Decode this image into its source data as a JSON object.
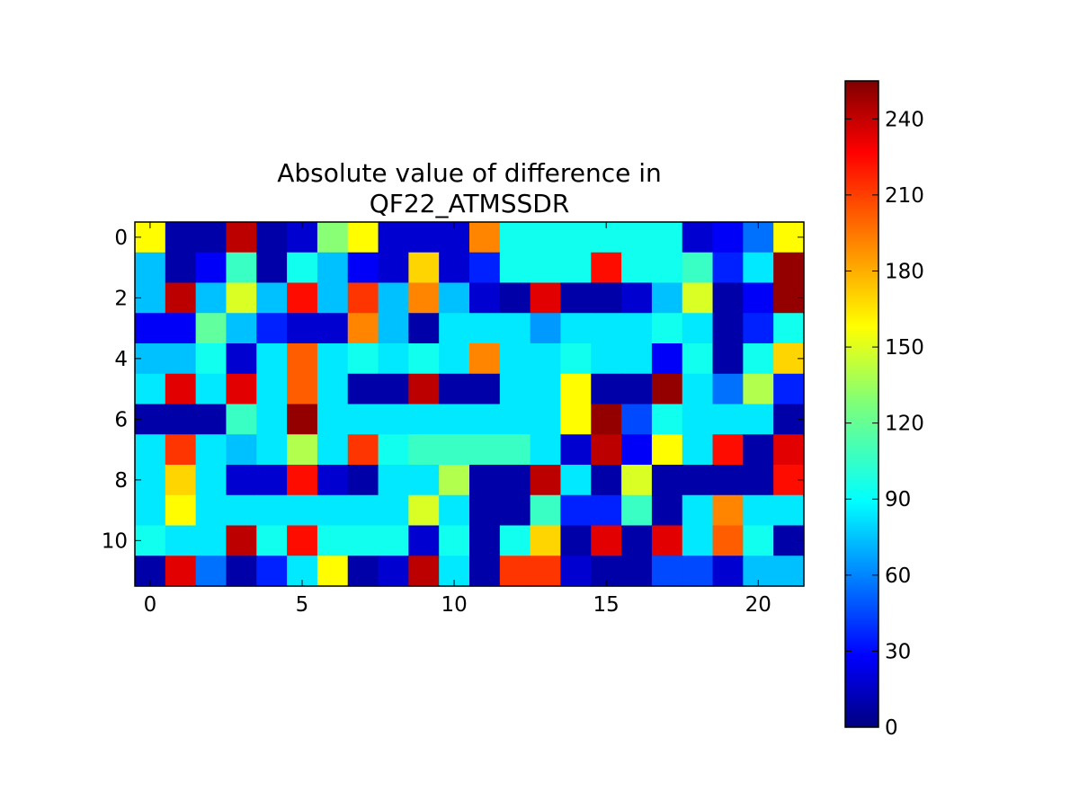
{
  "chart_data": {
    "type": "heatmap",
    "title_lines": [
      "Absolute value of difference in",
      "QF22_ATMSSDR"
    ],
    "colormap": "jet",
    "interpolation": "bilinear",
    "x_ticks": [
      0,
      5,
      10,
      15,
      20
    ],
    "y_ticks": [
      0,
      2,
      4,
      6,
      8,
      10
    ],
    "xlim": [
      -0.5,
      21.5
    ],
    "ylim": [
      11.5,
      -0.5
    ],
    "colorbar": {
      "range": [
        0,
        255
      ],
      "ticks": [
        0,
        30,
        60,
        90,
        120,
        150,
        180,
        210,
        240
      ],
      "position": "right"
    },
    "rows": 12,
    "cols": 22,
    "values": [
      [
        160,
        10,
        10,
        240,
        10,
        20,
        130,
        160,
        20,
        20,
        20,
        190,
        100,
        100,
        100,
        100,
        100,
        100,
        20,
        30,
        60,
        160
      ],
      [
        80,
        10,
        30,
        110,
        10,
        100,
        80,
        30,
        20,
        170,
        20,
        40,
        100,
        100,
        100,
        220,
        100,
        100,
        110,
        40,
        90,
        250
      ],
      [
        80,
        240,
        80,
        150,
        80,
        220,
        80,
        210,
        80,
        190,
        80,
        20,
        10,
        230,
        10,
        10,
        20,
        80,
        150,
        10,
        30,
        250
      ],
      [
        30,
        30,
        120,
        80,
        40,
        20,
        20,
        190,
        80,
        10,
        90,
        90,
        90,
        70,
        90,
        90,
        90,
        100,
        90,
        10,
        40,
        100
      ],
      [
        80,
        80,
        100,
        20,
        90,
        200,
        90,
        100,
        90,
        100,
        90,
        190,
        90,
        90,
        100,
        90,
        90,
        30,
        100,
        10,
        100,
        170
      ],
      [
        90,
        230,
        90,
        230,
        90,
        200,
        90,
        10,
        10,
        240,
        10,
        10,
        90,
        90,
        160,
        10,
        10,
        250,
        90,
        60,
        140,
        40
      ],
      [
        10,
        10,
        10,
        110,
        90,
        250,
        90,
        90,
        90,
        90,
        90,
        90,
        90,
        90,
        160,
        250,
        50,
        100,
        90,
        90,
        90,
        10
      ],
      [
        90,
        210,
        90,
        80,
        90,
        140,
        90,
        210,
        100,
        110,
        110,
        110,
        110,
        90,
        20,
        240,
        30,
        160,
        90,
        220,
        10,
        230
      ],
      [
        90,
        170,
        90,
        20,
        20,
        220,
        20,
        10,
        90,
        90,
        140,
        10,
        10,
        240,
        90,
        10,
        150,
        10,
        10,
        10,
        10,
        220
      ],
      [
        90,
        160,
        90,
        90,
        90,
        90,
        90,
        90,
        90,
        150,
        90,
        10,
        10,
        110,
        40,
        40,
        110,
        10,
        90,
        190,
        90,
        90
      ],
      [
        100,
        90,
        90,
        240,
        100,
        220,
        100,
        100,
        100,
        20,
        100,
        10,
        100,
        170,
        10,
        230,
        10,
        230,
        90,
        200,
        100,
        10
      ],
      [
        10,
        230,
        60,
        10,
        40,
        90,
        160,
        10,
        20,
        240,
        90,
        10,
        210,
        210,
        20,
        10,
        10,
        50,
        50,
        20,
        80,
        80
      ]
    ]
  }
}
